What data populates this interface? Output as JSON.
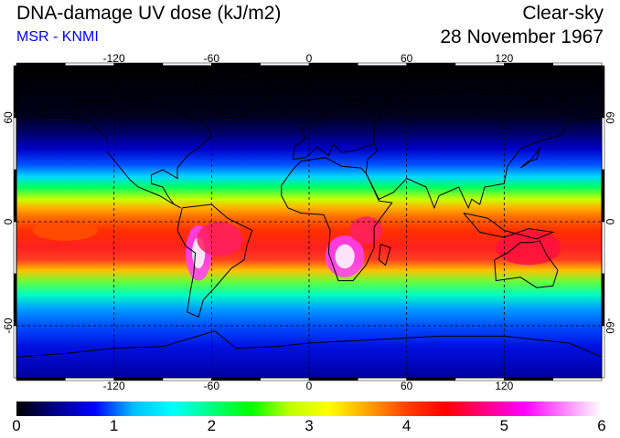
{
  "header": {
    "title": "DNA-damage UV dose (kJ/m2)",
    "subtitle": "MSR - KNMI",
    "sky_condition": "Clear-sky",
    "date": "28 November 1967"
  },
  "map": {
    "projection": "equirectangular",
    "lon_range": [
      -180,
      180
    ],
    "lat_range": [
      -90,
      90
    ],
    "graticule_style": "dashed",
    "lon_ticks": [
      {
        "value": -120,
        "label": "-120"
      },
      {
        "value": -60,
        "label": "-60"
      },
      {
        "value": 0,
        "label": "0"
      },
      {
        "value": 60,
        "label": "60"
      },
      {
        "value": 120,
        "label": "120"
      }
    ],
    "lat_ticks": [
      {
        "value": 60,
        "label": "60"
      },
      {
        "value": 0,
        "label": "0"
      },
      {
        "value": -60,
        "label": "-60"
      }
    ]
  },
  "colorbar": {
    "min": 0,
    "max": 6,
    "labels": [
      "0",
      "1",
      "2",
      "3",
      "4",
      "5",
      "6"
    ],
    "colors": [
      "#000000",
      "#00008b",
      "#0000ff",
      "#00bfff",
      "#00ffff",
      "#00ff80",
      "#00ff00",
      "#bfff00",
      "#ffff00",
      "#ffa500",
      "#ff4000",
      "#ff0000",
      "#ff0080",
      "#ff00ff",
      "#ff80ff",
      "#ffffff"
    ]
  },
  "colors": {
    "subtitle": "#0000ff",
    "coastline": "#000000",
    "grid": "#000000"
  }
}
